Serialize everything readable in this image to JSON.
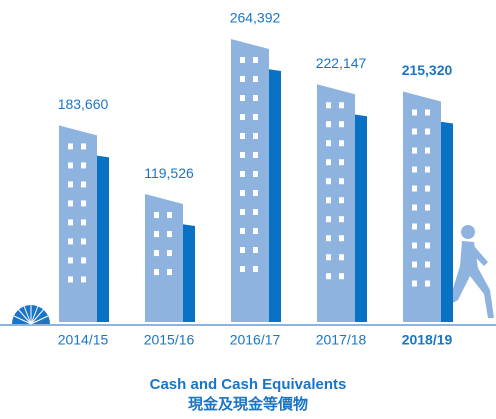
{
  "chart_data": {
    "type": "bar",
    "title": "Cash and Cash Equivalents",
    "subtitle": "現金及現金等價物",
    "categories": [
      "2014/15",
      "2015/16",
      "2016/17",
      "2017/18",
      "2018/19"
    ],
    "values": [
      183660,
      119526,
      264392,
      222147,
      215320
    ],
    "value_labels": [
      "183,660",
      "119,526",
      "264,392",
      "222,147",
      "215,320"
    ],
    "color": "#8fb3df"
  }
}
